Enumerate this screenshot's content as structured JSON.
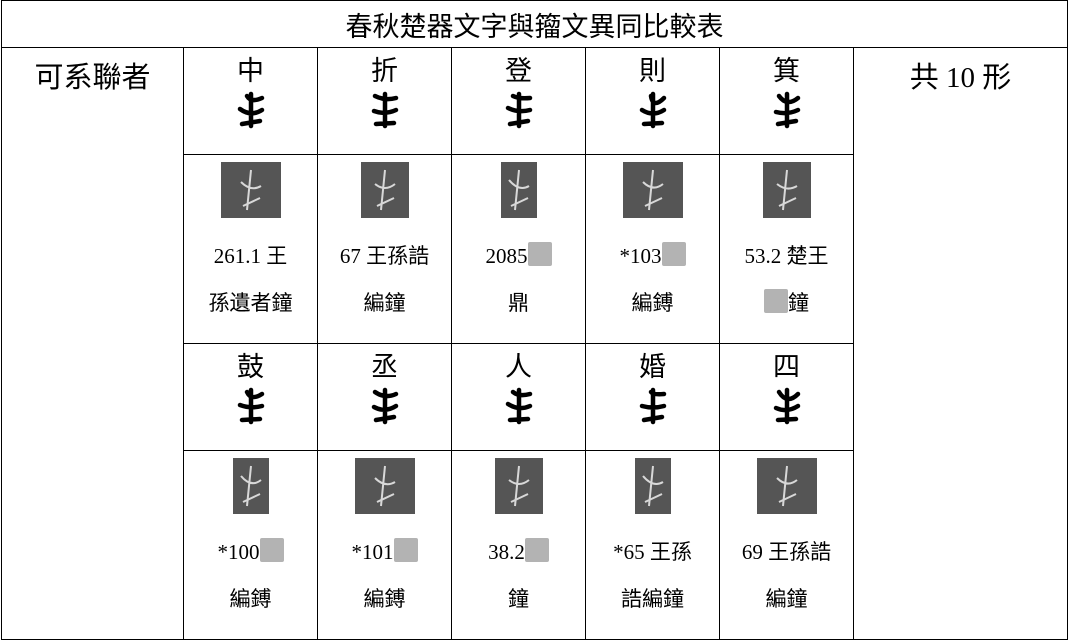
{
  "title": "春秋楚器文字與籀文異同比較表",
  "label": "可系聯者",
  "total": "共 10 形",
  "groups": [
    {
      "characters": [
        "中",
        "折",
        "登",
        "則",
        "箕"
      ],
      "captions": [
        [
          [
            "261.1 王"
          ],
          [
            "孫遺者鐘"
          ]
        ],
        [
          [
            "67 王孫誥"
          ],
          [
            "編鐘"
          ]
        ],
        [
          [
            "2085",
            null
          ],
          [
            "鼎"
          ]
        ],
        [
          [
            "*103",
            null
          ],
          [
            "編鎛"
          ]
        ],
        [
          [
            "53.2 楚王"
          ],
          [
            null,
            "鐘"
          ]
        ]
      ]
    },
    {
      "characters": [
        "鼓",
        "丞",
        "人",
        "婚",
        "四"
      ],
      "captions": [
        [
          [
            "*100",
            null
          ],
          [
            "編鎛"
          ]
        ],
        [
          [
            "*101",
            null
          ],
          [
            "編鎛"
          ]
        ],
        [
          [
            "38.2",
            null
          ],
          [
            "鐘"
          ]
        ],
        [
          [
            "*65 王孫"
          ],
          [
            "誥編鐘"
          ]
        ],
        [
          [
            "69 王孫誥"
          ],
          [
            "編鐘"
          ]
        ]
      ]
    }
  ]
}
